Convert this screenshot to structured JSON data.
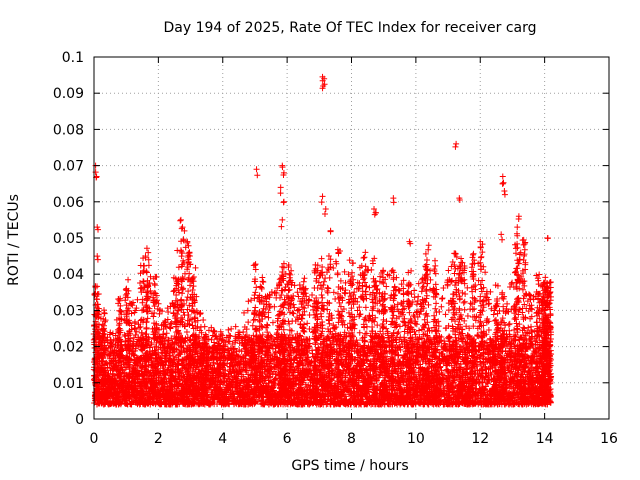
{
  "chart_data": {
    "type": "scatter",
    "title": "Day 194 of 2025, Rate Of TEC Index for receiver carg",
    "xlabel": "GPS time / hours",
    "ylabel": "ROTI / TECUs",
    "xlim": [
      0,
      16
    ],
    "ylim": [
      0,
      0.1
    ],
    "xticks": [
      0,
      2,
      4,
      6,
      8,
      10,
      12,
      14,
      16
    ],
    "xtick_labels": [
      "0",
      "2",
      "4",
      "6",
      "8",
      "10",
      "12",
      "14",
      "16"
    ],
    "yticks": [
      0,
      0.01,
      0.02,
      0.03,
      0.04,
      0.05,
      0.06,
      0.07,
      0.08,
      0.09,
      0.1
    ],
    "ytick_labels": [
      "0",
      "0.01",
      "0.02",
      "0.03",
      "0.04",
      "0.05",
      "0.06",
      "0.07",
      "0.08",
      "0.09",
      "0.1"
    ],
    "grid": true,
    "marker": "+",
    "marker_color": "#ff0000",
    "data_x_range_hours": [
      0,
      14.2
    ],
    "baseline_band": [
      0.005,
      0.02
    ],
    "peaks": [
      {
        "x": 0.05,
        "y": 0.07
      },
      {
        "x": 0.08,
        "y": 0.067
      },
      {
        "x": 0.1,
        "y": 0.053
      },
      {
        "x": 0.1,
        "y": 0.045
      },
      {
        "x": 1.6,
        "y": 0.045
      },
      {
        "x": 1.7,
        "y": 0.044
      },
      {
        "x": 2.7,
        "y": 0.055
      },
      {
        "x": 2.75,
        "y": 0.053
      },
      {
        "x": 2.9,
        "y": 0.049
      },
      {
        "x": 5.05,
        "y": 0.069
      },
      {
        "x": 5.85,
        "y": 0.07
      },
      {
        "x": 5.9,
        "y": 0.068
      },
      {
        "x": 5.8,
        "y": 0.064
      },
      {
        "x": 5.9,
        "y": 0.06
      },
      {
        "x": 5.85,
        "y": 0.055
      },
      {
        "x": 7.1,
        "y": 0.0945
      },
      {
        "x": 7.15,
        "y": 0.094
      },
      {
        "x": 7.12,
        "y": 0.092
      },
      {
        "x": 7.1,
        "y": 0.0615
      },
      {
        "x": 7.2,
        "y": 0.058
      },
      {
        "x": 7.35,
        "y": 0.052
      },
      {
        "x": 8.7,
        "y": 0.058
      },
      {
        "x": 8.75,
        "y": 0.057
      },
      {
        "x": 9.3,
        "y": 0.061
      },
      {
        "x": 11.25,
        "y": 0.076
      },
      {
        "x": 11.35,
        "y": 0.061
      },
      {
        "x": 12.7,
        "y": 0.067
      },
      {
        "x": 12.7,
        "y": 0.065
      },
      {
        "x": 12.75,
        "y": 0.063
      },
      {
        "x": 13.2,
        "y": 0.056
      },
      {
        "x": 14.1,
        "y": 0.05
      },
      {
        "x": 13.15,
        "y": 0.053
      },
      {
        "x": 12.0,
        "y": 0.049
      },
      {
        "x": 12.65,
        "y": 0.051
      },
      {
        "x": 10.4,
        "y": 0.048
      },
      {
        "x": 9.8,
        "y": 0.049
      }
    ]
  }
}
